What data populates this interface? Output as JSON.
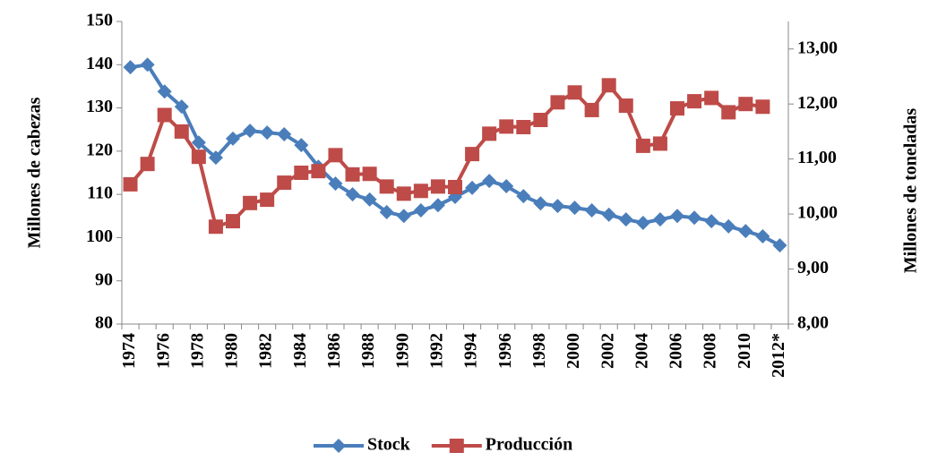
{
  "chart_data": {
    "type": "line",
    "categories": [
      "1974",
      null,
      "1976",
      null,
      "1978",
      null,
      "1980",
      null,
      "1982",
      null,
      "1984",
      null,
      "1986",
      null,
      "1988",
      null,
      "1990",
      null,
      "1992",
      null,
      "1994",
      null,
      "1996",
      null,
      "1998",
      null,
      "2000",
      null,
      "2002",
      null,
      "2004",
      null,
      "2006",
      null,
      "2008",
      null,
      "2010",
      null,
      "2012*"
    ],
    "series": [
      {
        "name": "Stock",
        "color": "#4a7ebb",
        "marker": "diamond",
        "axis": "y",
        "values": [
          139.4,
          140,
          133.8,
          130.3,
          122,
          118.5,
          122.9,
          124.7,
          124.3,
          123.9,
          121.4,
          116.4,
          112.5,
          110,
          108.8,
          105.9,
          105,
          106.3,
          107.5,
          109.4,
          111.5,
          113.1,
          111.9,
          109.6,
          107.9,
          107.3,
          106.9,
          106.3,
          105.3,
          104.2,
          103.4,
          104.2,
          105,
          104.6,
          103.8,
          102.6,
          101.5,
          100.3,
          98.2
        ]
      },
      {
        "name": "Producción",
        "color": "#be4b48",
        "marker": "square",
        "axis": "y2",
        "values": [
          10.54,
          10.91,
          11.8,
          11.5,
          11.04,
          9.77,
          9.87,
          10.2,
          10.26,
          10.57,
          10.75,
          10.78,
          11.07,
          10.72,
          10.73,
          10.5,
          10.37,
          10.42,
          10.5,
          10.49,
          11.09,
          11.46,
          11.59,
          11.58,
          11.71,
          12.03,
          12.21,
          11.89,
          12.34,
          11.97,
          11.24,
          11.28,
          11.92,
          12.05,
          12.11,
          11.85,
          12,
          11.95,
          null
        ]
      }
    ],
    "ylabel": "Millones de cabezas",
    "y2label": "Millones de toneladas",
    "ylim": [
      80,
      150
    ],
    "yticks": [
      80,
      90,
      100,
      110,
      120,
      130,
      140,
      150
    ],
    "y2lim": [
      8,
      13.5
    ],
    "y2ticks": [
      {
        "value": 8,
        "label": "8,00"
      },
      {
        "value": 9,
        "label": "9,00"
      },
      {
        "value": 10,
        "label": "10,00"
      },
      {
        "value": 11,
        "label": "11,00"
      },
      {
        "value": 12,
        "label": "12,00"
      },
      {
        "value": 13,
        "label": "13,00"
      }
    ],
    "grid": false,
    "legend": "bottom"
  }
}
